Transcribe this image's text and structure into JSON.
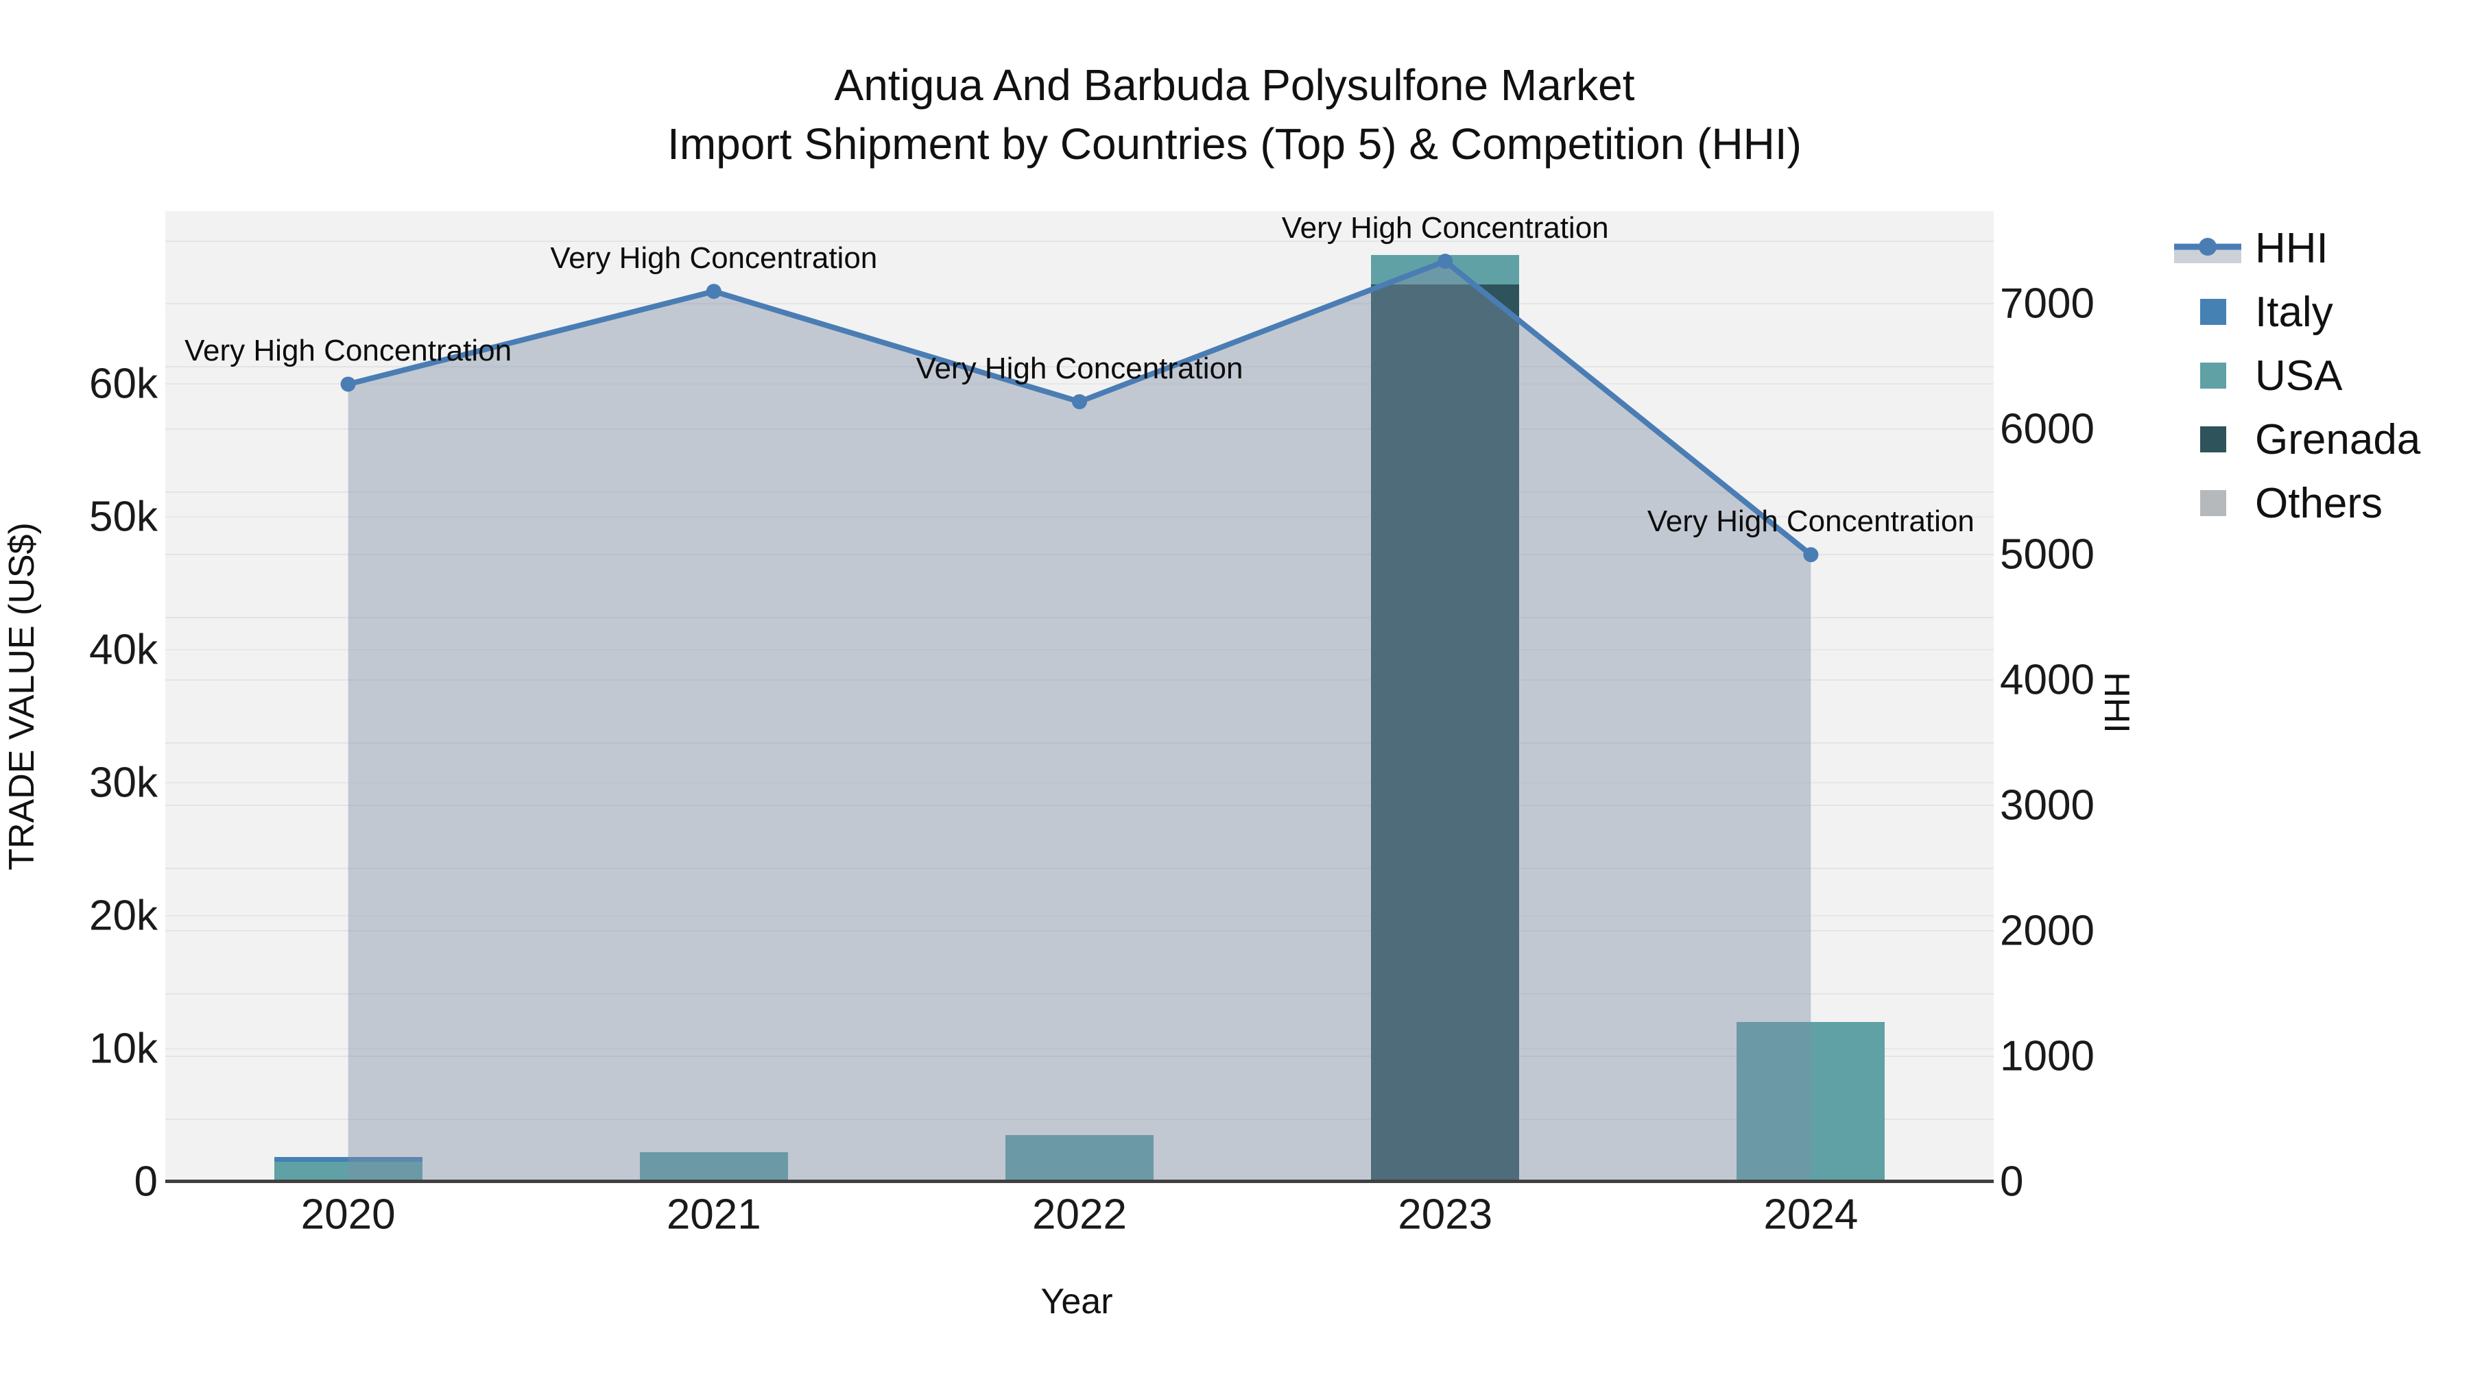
{
  "title": {
    "line1": "Antigua And Barbuda Polysulfone Market",
    "line2": "Import Shipment by Countries (Top 5) & Competition (HHI)"
  },
  "chart_data": {
    "type": "bar",
    "subtype": "stacked bars (left axis) + line with markers and area fill (right axis)",
    "categories": [
      "2020",
      "2021",
      "2022",
      "2023",
      "2024"
    ],
    "bar_series": [
      {
        "name": "Italy",
        "color": "#4681b4",
        "values": [
          360,
          0,
          0,
          0,
          0
        ]
      },
      {
        "name": "USA",
        "color": "#60a1a5",
        "values": [
          1500,
          2200,
          3500,
          2200,
          12000
        ]
      },
      {
        "name": "Grenada",
        "color": "#2e535a",
        "values": [
          0,
          0,
          0,
          67500,
          0
        ]
      },
      {
        "name": "Others",
        "color": "#b6b9bc",
        "values": [
          0,
          0,
          0,
          0,
          0
        ]
      }
    ],
    "stack_note": "bars stacked bottom-to-top in order Others, Grenada, USA, Italy",
    "line_series": {
      "name": "HHI",
      "color": "#4a7db4",
      "area_color": "rgba(127,143,166,0.42)",
      "values": [
        6360,
        7100,
        6220,
        7340,
        5000
      ]
    },
    "annotations": [
      "Very High Concentration",
      "Very High Concentration",
      "Very High Concentration",
      "Very High Concentration",
      "Very High Concentration"
    ],
    "left_axis": {
      "title": "TRADE VALUE (US$)",
      "ticks": [
        "0",
        "10k",
        "20k",
        "30k",
        "40k",
        "50k",
        "60k"
      ],
      "tick_values": [
        0,
        10000,
        20000,
        30000,
        40000,
        50000,
        60000
      ],
      "range": [
        0,
        73000
      ]
    },
    "right_axis": {
      "title": "HHI",
      "ticks": [
        "0",
        "1000",
        "2000",
        "3000",
        "4000",
        "5000",
        "6000",
        "7000"
      ],
      "tick_values": [
        0,
        1000,
        2000,
        3000,
        4000,
        5000,
        6000,
        7000
      ],
      "range": [
        0,
        7740
      ],
      "grid_step": 500
    },
    "x_axis": {
      "title": "Year"
    },
    "grid": true,
    "legend_position": "right",
    "plot_background": "#f2f2f2"
  },
  "legend": {
    "items": [
      {
        "label": "HHI",
        "type": "line"
      },
      {
        "label": "Italy",
        "type": "swatch"
      },
      {
        "label": "USA",
        "type": "swatch"
      },
      {
        "label": "Grenada",
        "type": "swatch"
      },
      {
        "label": "Others",
        "type": "swatch"
      }
    ]
  }
}
